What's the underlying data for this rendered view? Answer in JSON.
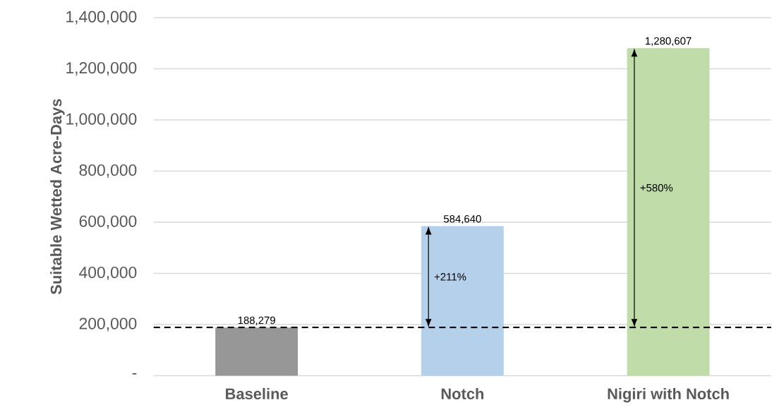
{
  "chart_data": {
    "type": "bar",
    "ylabel": "Suitable Wetted Acre-Days",
    "categories": [
      "Baseline",
      "Notch",
      "Nigiri with Notch"
    ],
    "values": [
      188279,
      584640,
      1280607
    ],
    "colors": [
      "#979797",
      "#b5d0ea",
      "#c0dca9"
    ],
    "value_labels": [
      "188,279",
      "584,640",
      "1,280,607"
    ],
    "ylim": [
      0,
      1400000
    ],
    "yticks": [
      {
        "value": 0,
        "label": "-"
      },
      {
        "value": 200000,
        "label": "200,000"
      },
      {
        "value": 400000,
        "label": "400,000"
      },
      {
        "value": 600000,
        "label": "600,000"
      },
      {
        "value": 800000,
        "label": "800,000"
      },
      {
        "value": 1000000,
        "label": "1,000,000"
      },
      {
        "value": 1200000,
        "label": "1,200,000"
      },
      {
        "value": 1400000,
        "label": "1,400,000"
      }
    ],
    "grid": "y",
    "ref_lines": [
      {
        "axis": "y",
        "value": 188279,
        "color": "#000000",
        "line_style": "dashed"
      }
    ],
    "annotations": [
      "+211%",
      "+580%"
    ]
  }
}
